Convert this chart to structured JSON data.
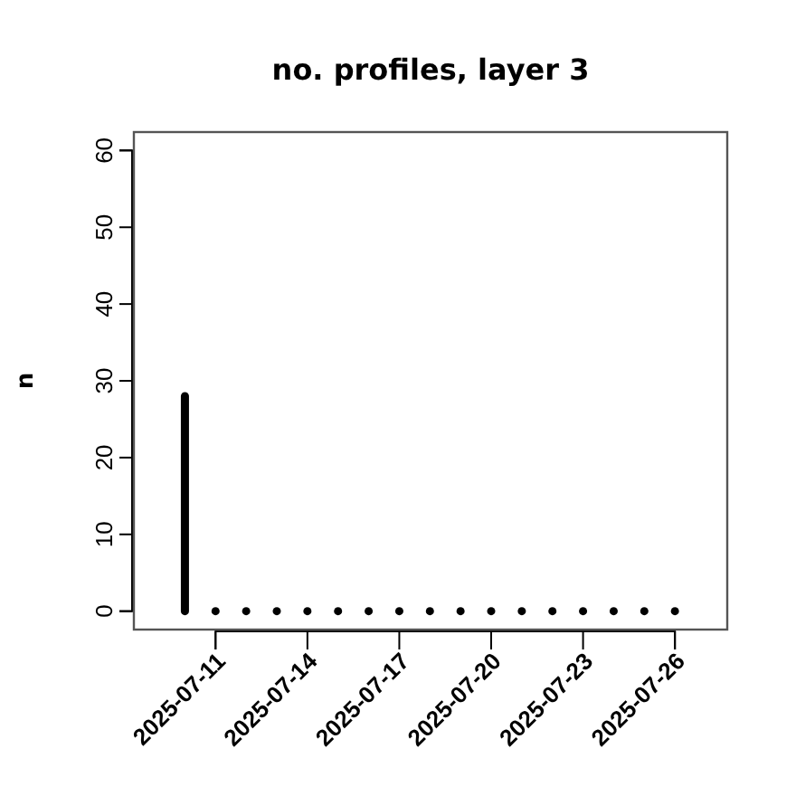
{
  "chart_data": {
    "type": "bar",
    "title": "no. profiles, layer 3",
    "ylabel": "n",
    "x": [
      "2025-07-10",
      "2025-07-11",
      "2025-07-12",
      "2025-07-13",
      "2025-07-14",
      "2025-07-15",
      "2025-07-16",
      "2025-07-17",
      "2025-07-18",
      "2025-07-19",
      "2025-07-20",
      "2025-07-21",
      "2025-07-22",
      "2025-07-23",
      "2025-07-24",
      "2025-07-25",
      "2025-07-26"
    ],
    "values": [
      28,
      0,
      0,
      0,
      0,
      0,
      0,
      0,
      0,
      0,
      0,
      0,
      0,
      0,
      0,
      0,
      0
    ],
    "color": "#000000",
    "xlim": [
      "2025-07-08T08:00",
      "2025-07-27T17:00"
    ],
    "xticks": [
      "2025-07-11",
      "2025-07-14",
      "2025-07-17",
      "2025-07-20",
      "2025-07-23",
      "2025-07-26"
    ],
    "ylim": [
      -2.4,
      62.4
    ],
    "yticks": [
      0,
      10,
      20,
      30,
      40,
      50,
      60
    ],
    "grid": false
  }
}
